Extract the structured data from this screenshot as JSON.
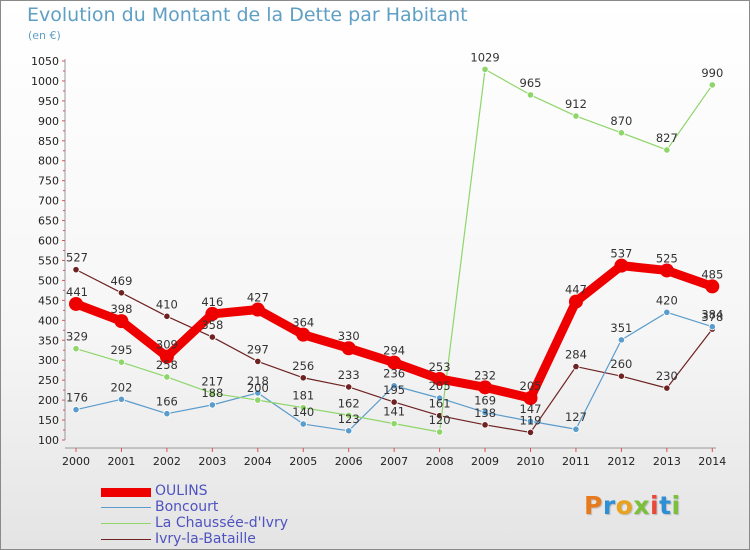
{
  "title": "Evolution du Montant de la Dette par Habitant",
  "unit": "(en €)",
  "logo": {
    "text": "Proxiti",
    "letter_colors": [
      "#e87a1e",
      "#2e8fd6",
      "#e8a21e",
      "#7bbf3a",
      "#e84a3a",
      "#2e8fd6",
      "#7bbf3a"
    ]
  },
  "chart_data": {
    "type": "line",
    "title": "Evolution du Montant de la Dette par Habitant",
    "ylabel": "(en €)",
    "x": [
      "2000",
      "2001",
      "2002",
      "2003",
      "2004",
      "2005",
      "2006",
      "2007",
      "2008",
      "2009",
      "2010",
      "2011",
      "2012",
      "2013",
      "2014"
    ],
    "ylim": [
      100,
      1050
    ],
    "yticks": [
      100,
      150,
      200,
      250,
      300,
      350,
      400,
      450,
      500,
      550,
      600,
      650,
      700,
      750,
      800,
      850,
      900,
      950,
      1000,
      1050
    ],
    "grid": false,
    "legend_position": "bottom-left",
    "series": [
      {
        "name": "Ivry-la-Bataille",
        "color": "#6e2222",
        "values": [
          527,
          469,
          410,
          358,
          297,
          256,
          233,
          195,
          161,
          138,
          119,
          284,
          260,
          230,
          378
        ],
        "labels": [
          "527",
          "469",
          "410",
          "358",
          "297",
          "256",
          "233",
          "195",
          "161",
          "",
          "119",
          "284",
          "260",
          "230",
          "378"
        ]
      },
      {
        "name": "Boncourt",
        "color": "#5a9ccc",
        "values": [
          176,
          202,
          166,
          188,
          218,
          140,
          123,
          236,
          205,
          169,
          147,
          127,
          351,
          420,
          384
        ],
        "labels": [
          "176",
          "202",
          "166",
          "188",
          "218",
          "140",
          "123",
          "236",
          "205",
          "169",
          "147",
          "127",
          "351",
          "420",
          "384"
        ]
      },
      {
        "name": "La Chaussée-d'Ivry",
        "color": "#8ed66a",
        "values": [
          329,
          295,
          258,
          217,
          200,
          181,
          162,
          141,
          120,
          1029,
          965,
          912,
          870,
          827,
          990
        ],
        "labels": [
          "329",
          "295",
          "258",
          "217",
          "200",
          "181",
          "162",
          "141",
          "120",
          "1029",
          "965",
          "912",
          "870",
          "827",
          "990"
        ]
      },
      {
        "name": "OULINS",
        "color": "#ee0000",
        "values": [
          441,
          398,
          309,
          416,
          427,
          364,
          330,
          294,
          253,
          232,
          205,
          447,
          537,
          525,
          485
        ],
        "labels": [
          "441",
          "398",
          "309",
          "416",
          "427",
          "364",
          "330",
          "294",
          "253",
          "232",
          "205",
          "447",
          "537",
          "525",
          "485"
        ]
      }
    ],
    "legend": [
      "OULINS",
      "Boncourt",
      "La Chaussée-d'Ivry",
      "Ivry-la-Bataille"
    ],
    "extra_labels": [
      "138"
    ]
  }
}
